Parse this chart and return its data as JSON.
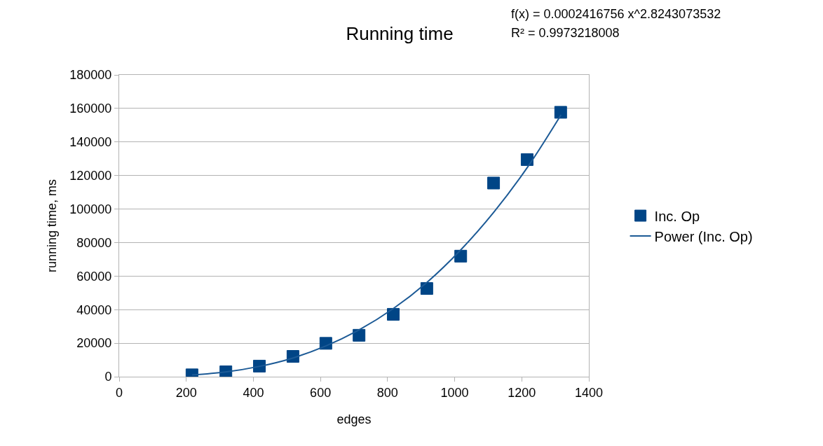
{
  "chart_data": {
    "type": "scatter",
    "title": "Running time",
    "xlabel": "edges",
    "ylabel": "running time, ms",
    "annotations": [
      "f(x) = 0.0002416756 x^2.8243073532",
      "R² = 0.9973218008"
    ],
    "series": [
      {
        "name": "Inc. Op",
        "color": "#004586",
        "marker": "square",
        "x": [
          217,
          318,
          418,
          518,
          616,
          715,
          817,
          917,
          1018,
          1116,
          1216,
          1316
        ],
        "values": [
          1100,
          2900,
          6300,
          12100,
          19900,
          24700,
          37200,
          52600,
          71900,
          115500,
          129500,
          157700
        ]
      },
      {
        "name": "Power (Inc. Op)",
        "type": "line",
        "color": "#1c5a96",
        "marker": "none",
        "line_style": "solid",
        "x": [
          217,
          317,
          417,
          517,
          617,
          717,
          817,
          917,
          1017,
          1117,
          1217,
          1317
        ],
        "values": [
          1000,
          2800,
          6100,
          11100,
          18400,
          28100,
          40600,
          56200,
          75400,
          98200,
          124900,
          156200
        ]
      }
    ],
    "xlim": [
      0,
      1400
    ],
    "xticks": [
      0,
      200,
      400,
      600,
      800,
      1000,
      1200,
      1400
    ],
    "ylim": [
      0,
      180000
    ],
    "yticks": [
      0,
      20000,
      40000,
      60000,
      80000,
      100000,
      120000,
      140000,
      160000,
      180000
    ],
    "grid": "y",
    "legend": "right"
  }
}
